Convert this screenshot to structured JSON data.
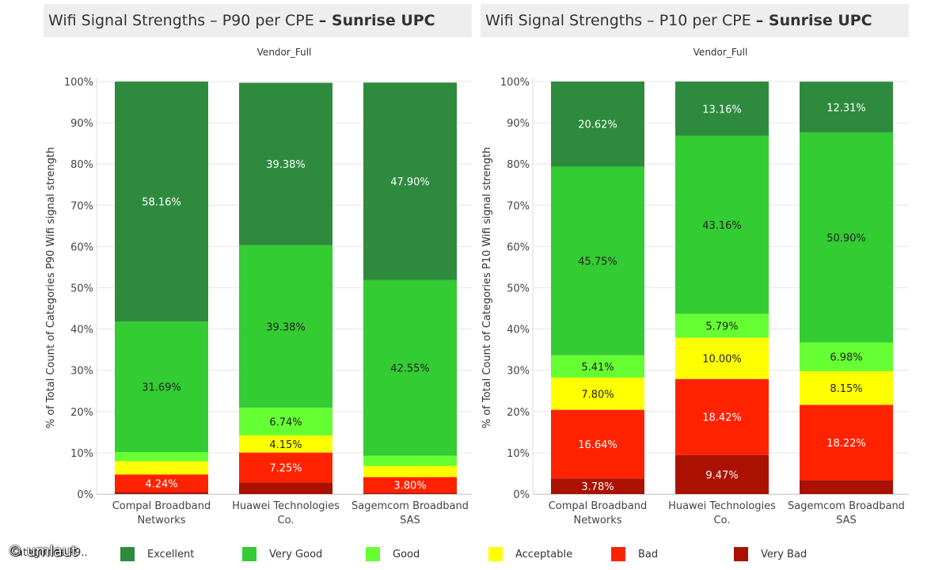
{
  "chart_data": [
    {
      "type": "bar",
      "stacked": true,
      "title_regular": "Wifi Signal Strengths – P90 per CPE ",
      "title_bold": "– Sunrise UPC",
      "column_header": "Vendor_Full",
      "ylabel": "% of Total Count of Categories P90  Wifi signal strength",
      "ylim": [
        0,
        100
      ],
      "yticks": [
        "0%",
        "10%",
        "20%",
        "30%",
        "40%",
        "50%",
        "60%",
        "70%",
        "80%",
        "90%",
        "100%"
      ],
      "categories": [
        [
          "Compal Broadband",
          "Networks"
        ],
        [
          "Huawei Technologies",
          "Co."
        ],
        [
          "Sagemcom Broadband",
          "SAS"
        ]
      ],
      "series": [
        {
          "name": "Very Bad",
          "values": [
            0.5,
            2.8,
            0.3
          ],
          "labels": [
            "",
            "",
            ""
          ]
        },
        {
          "name": "Bad",
          "values": [
            4.24,
            7.25,
            3.8
          ],
          "labels": [
            "4.24%",
            "7.25%",
            "3.80%"
          ]
        },
        {
          "name": "Acceptable",
          "values": [
            3.2,
            4.15,
            2.7
          ],
          "labels": [
            "",
            "4.15%",
            ""
          ]
        },
        {
          "name": "Good",
          "values": [
            2.2,
            6.74,
            2.5
          ],
          "labels": [
            "",
            "6.74%",
            ""
          ]
        },
        {
          "name": "Very Good",
          "values": [
            31.69,
            39.38,
            42.55
          ],
          "labels": [
            "31.69%",
            "39.38%",
            "42.55%"
          ]
        },
        {
          "name": "Excellent",
          "values": [
            58.16,
            39.38,
            47.9
          ],
          "labels": [
            "58.16%",
            "39.38%",
            "47.90%"
          ]
        }
      ]
    },
    {
      "type": "bar",
      "stacked": true,
      "title_regular": "Wifi Signal Strengths – P10 per CPE ",
      "title_bold": "– Sunrise UPC",
      "column_header": "Vendor_Full",
      "ylabel": "% of Total Count of Categories P10  Wifi signal strength",
      "ylim": [
        0,
        100
      ],
      "yticks": [
        "0%",
        "10%",
        "20%",
        "30%",
        "40%",
        "50%",
        "60%",
        "70%",
        "80%",
        "90%",
        "100%"
      ],
      "categories": [
        [
          "Compal Broadband",
          "Networks"
        ],
        [
          "Huawei Technologies",
          "Co."
        ],
        [
          "Sagemcom Broadband",
          "SAS"
        ]
      ],
      "series": [
        {
          "name": "Very Bad",
          "values": [
            3.78,
            9.47,
            3.4
          ],
          "labels": [
            "3.78%",
            "9.47%",
            ""
          ]
        },
        {
          "name": "Bad",
          "values": [
            16.64,
            18.42,
            18.22
          ],
          "labels": [
            "16.64%",
            "18.42%",
            "18.22%"
          ]
        },
        {
          "name": "Acceptable",
          "values": [
            7.8,
            10.0,
            8.15
          ],
          "labels": [
            "7.80%",
            "10.00%",
            "8.15%"
          ]
        },
        {
          "name": "Good",
          "values": [
            5.41,
            5.79,
            6.98
          ],
          "labels": [
            "5.41%",
            "5.79%",
            "6.98%"
          ]
        },
        {
          "name": "Very Good",
          "values": [
            45.75,
            43.16,
            50.9
          ],
          "labels": [
            "45.75%",
            "43.16%",
            "50.90%"
          ]
        },
        {
          "name": "Excellent",
          "values": [
            20.62,
            13.16,
            12.31
          ],
          "labels": [
            "20.62%",
            "13.16%",
            "12.31%"
          ]
        }
      ]
    }
  ],
  "colors": {
    "Excellent": "#2e8b3e",
    "Very Good": "#33cc33",
    "Good": "#66ff33",
    "Acceptable": "#ffff00",
    "Bad": "#ff2200",
    "Very Bad": "#aa1100"
  },
  "legend": {
    "title": "Categories P9..",
    "items": [
      "Excellent",
      "Very Good",
      "Good",
      "Acceptable",
      "Bad",
      "Very Bad"
    ]
  },
  "watermark": "© umlaut"
}
